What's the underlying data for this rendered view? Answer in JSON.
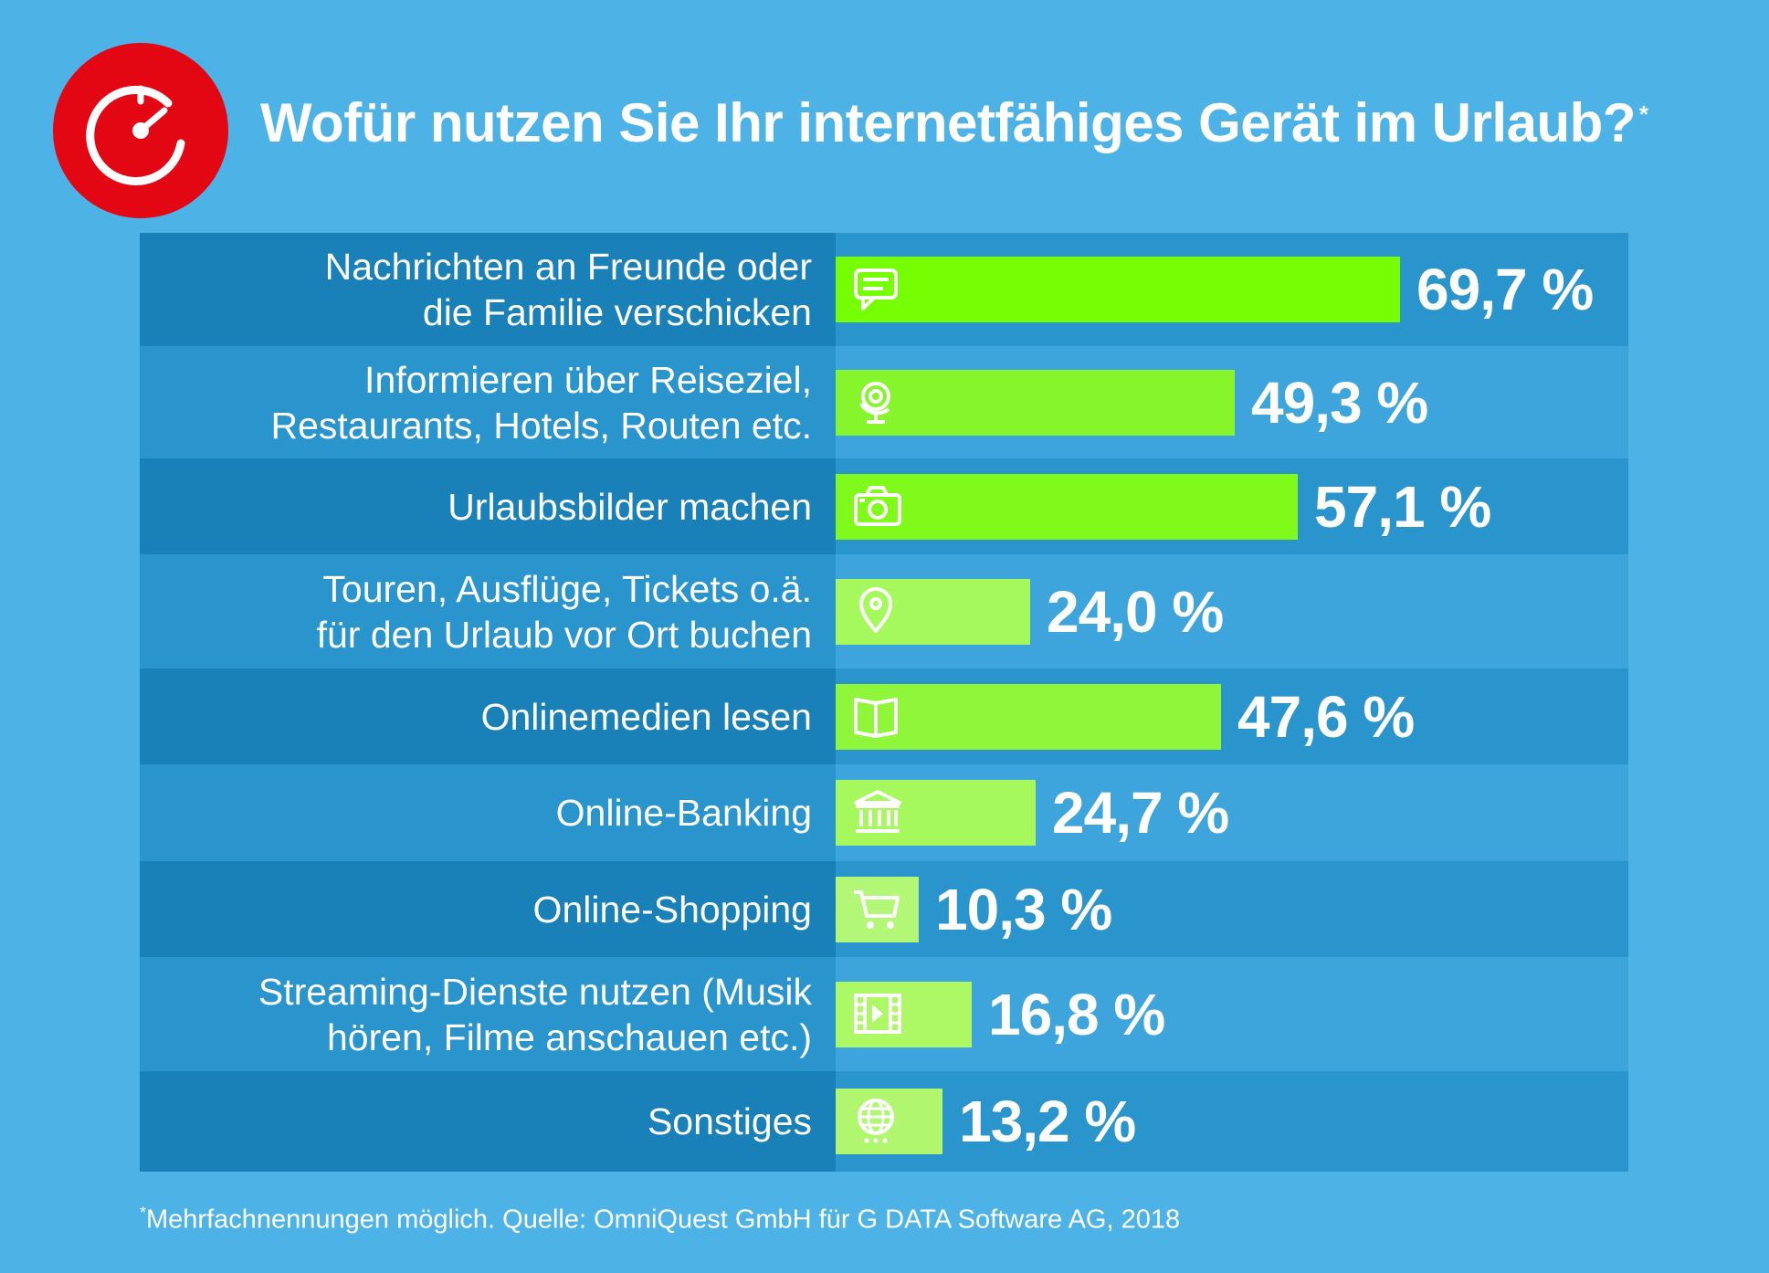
{
  "header": {
    "title": "Wofür nutzen Sie Ihr internetfähiges Gerät im Urlaub?",
    "title_mark": "*",
    "logo_icon": "speedometer-icon"
  },
  "chart_data": {
    "type": "bar",
    "orientation": "horizontal",
    "title": "Wofür nutzen Sie Ihr internetfähiges Gerät im Urlaub?*",
    "categories": [
      "Nachrichten an Freunde oder\ndie Familie verschicken",
      "Informieren über Reiseziel,\nRestaurants, Hotels, Routen etc.",
      "Urlaubsbilder machen",
      "Touren, Ausflüge, Tickets o.ä.\nfür den Urlaub vor Ort buchen",
      "Onlinemedien lesen",
      "Online-Banking",
      "Online-Shopping",
      "Streaming-Dienste nutzen (Musik\nhören, Filme anschauen etc.)",
      "Sonstiges"
    ],
    "values": [
      69.7,
      49.3,
      57.1,
      24.0,
      47.6,
      24.7,
      10.3,
      16.8,
      13.2
    ],
    "value_labels": [
      "69,7 %",
      "49,3 %",
      "57,1 %",
      "24,0 %",
      "47,6 %",
      "24,7 %",
      "10,3 %",
      "16,8 %",
      "13,2 %"
    ],
    "icons": [
      "message-icon",
      "globe-stand-icon",
      "camera-icon",
      "location-pin-icon",
      "book-icon",
      "bank-icon",
      "shopping-cart-icon",
      "film-icon",
      "globe-icon"
    ],
    "unit": "%",
    "xlim": [
      0,
      100
    ],
    "bar_colors": [
      "#76ff03",
      "#87f52c",
      "#80fa1a",
      "#a6f95c",
      "#8ff63a",
      "#a6f95c",
      "#b3f777",
      "#acf865",
      "#b0f76f"
    ]
  },
  "footnote": {
    "mark": "*",
    "text": "Mehrfachnennungen möglich. Quelle: OmniQuest GmbH für G DATA Software AG, 2018"
  }
}
